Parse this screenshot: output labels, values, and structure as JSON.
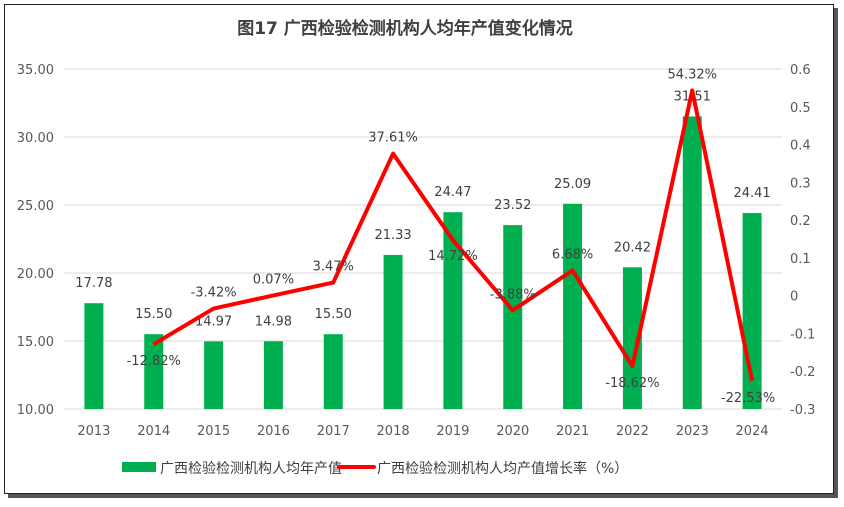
{
  "chart_data": {
    "type": "bar+line",
    "title": "图17  广西检验检测机构人均年产值变化情况",
    "categories": [
      "2013",
      "2014",
      "2015",
      "2016",
      "2017",
      "2018",
      "2019",
      "2020",
      "2021",
      "2022",
      "2023",
      "2024"
    ],
    "series": [
      {
        "name": "广西检验检测机构人均年产值",
        "type": "bar",
        "axis": "left",
        "color": "#00B050",
        "values": [
          17.78,
          15.5,
          14.97,
          14.98,
          15.5,
          21.33,
          24.47,
          23.52,
          25.09,
          20.42,
          31.51,
          24.41
        ],
        "labels": [
          "17.78",
          "15.50",
          "14.97",
          "14.98",
          "15.50",
          "21.33",
          "24.47",
          "23.52",
          "25.09",
          "20.42",
          "31.51",
          "24.41"
        ]
      },
      {
        "name": "广西检验检测机构人均产值增长率（%）",
        "type": "line",
        "axis": "right",
        "color": "#FF0000",
        "values": [
          null,
          -0.1282,
          -0.0342,
          0.0007,
          0.0347,
          0.3761,
          0.1472,
          -0.0388,
          0.0668,
          -0.1862,
          0.5432,
          -0.2253
        ],
        "labels": [
          "",
          "-12.82%",
          "-3.42%",
          "0.07%",
          "3.47%",
          "37.61%",
          "14.72%",
          "-3.88%",
          "6.68%",
          "-18.62%",
          "54.32%",
          "-22.53%"
        ]
      }
    ],
    "y_left": {
      "range": [
        10,
        35
      ],
      "ticks": [
        "10.00",
        "15.00",
        "20.00",
        "25.00",
        "30.00",
        "35.00"
      ]
    },
    "y_right": {
      "range": [
        -0.3,
        0.6
      ],
      "ticks": [
        "-0.3",
        "-0.2",
        "-0.1",
        "0",
        "0.1",
        "0.2",
        "0.3",
        "0.4",
        "0.5",
        "0.6"
      ]
    },
    "grid": true,
    "legend": "bottom"
  }
}
